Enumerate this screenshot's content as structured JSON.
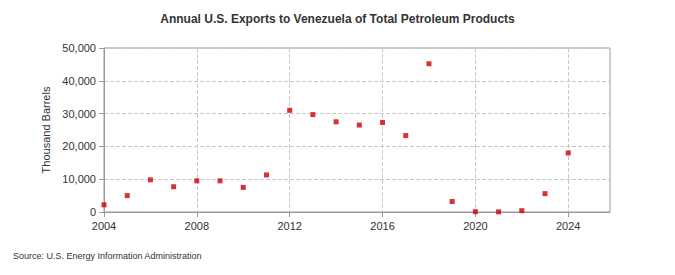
{
  "chart_data": {
    "type": "scatter",
    "title": "Annual U.S. Exports to Venezuela of Total Petroleum Products",
    "y_label": "Thousand Barrels",
    "source": "Source: U.S. Energy Information Administration",
    "x": [
      2004,
      2005,
      2006,
      2007,
      2008,
      2009,
      2010,
      2011,
      2012,
      2013,
      2014,
      2015,
      2016,
      2017,
      2018,
      2019,
      2020,
      2021,
      2022,
      2023,
      2024
    ],
    "values": [
      2200,
      5000,
      9800,
      7700,
      9500,
      9500,
      7500,
      11300,
      31000,
      29700,
      27500,
      26500,
      27300,
      23300,
      45200,
      3200,
      100,
      50,
      400,
      5600,
      18000
    ],
    "color": "#cc0000",
    "marker": "square",
    "xlim": [
      2004,
      2025.8
    ],
    "xticks": [
      2004,
      2008,
      2012,
      2016,
      2020,
      2024
    ],
    "ylim": [
      0,
      50000
    ],
    "yticks": [
      0,
      {
        "value": 10000,
        "label": "10,000"
      },
      {
        "value": 20000,
        "label": "20,000"
      },
      {
        "value": 30000,
        "label": "30,000"
      },
      {
        "value": 40000,
        "label": "40,000"
      },
      {
        "value": 50000,
        "label": "50,000"
      }
    ],
    "grid": true
  }
}
